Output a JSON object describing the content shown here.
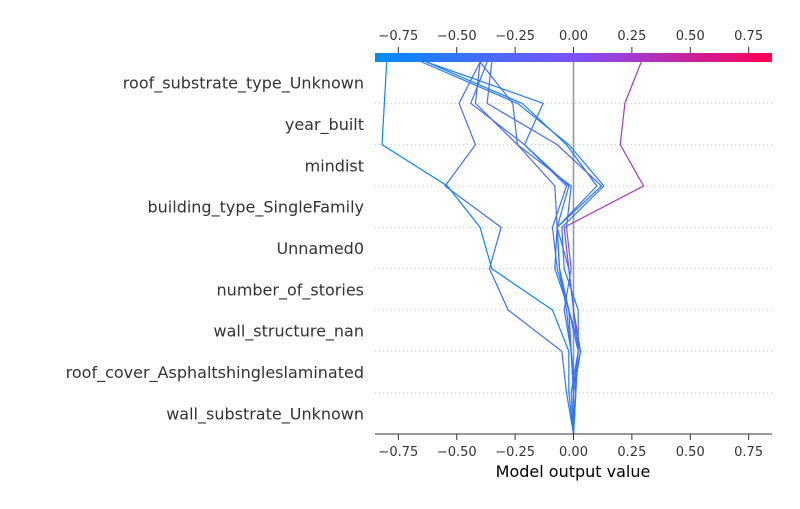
{
  "chart_data": {
    "type": "line",
    "subtype": "shap-decision-plot",
    "xlabel": "Model output value",
    "xlim": [
      -0.85,
      0.85
    ],
    "xticks": [
      -0.75,
      -0.5,
      -0.25,
      0.0,
      0.25,
      0.5,
      0.75
    ],
    "xtick_labels": [
      "−0.75",
      "−0.50",
      "−0.25",
      "0.00",
      "0.25",
      "0.50",
      "0.75"
    ],
    "base_value": 0.0,
    "features": [
      "roof_substrate_type_Unknown",
      "year_built",
      "mindist",
      "building_type_SingleFamily",
      "Unnamed0",
      "number_of_stories",
      "wall_structure_nan",
      "roof_cover_Asphaltshingleslaminated",
      "wall_substrate_Unknown"
    ],
    "colorbar": {
      "from_color": "#008bfb",
      "mid_color": "#7c52ff",
      "to_color": "#ff0052"
    },
    "grid": "dotted horizontal per feature",
    "paths": [
      {
        "values": [
          0.0,
          0.0,
          0.03,
          0.0,
          -0.02,
          -0.04,
          0.3,
          0.2,
          0.22,
          0.29
        ]
      },
      {
        "values": [
          0.0,
          -0.01,
          0.02,
          0.02,
          -0.04,
          -0.05,
          0.13,
          -0.02,
          -0.24,
          -0.65
        ]
      },
      {
        "values": [
          0.0,
          0.0,
          0.03,
          -0.02,
          -0.08,
          -0.07,
          0.1,
          -0.03,
          -0.22,
          -0.63
        ]
      },
      {
        "values": [
          0.0,
          -0.03,
          -0.05,
          -0.28,
          -0.36,
          -0.31,
          -0.55,
          -0.42,
          -0.49,
          -0.4
        ]
      },
      {
        "values": [
          0.0,
          0.01,
          0.02,
          0.0,
          -0.02,
          -0.07,
          0.12,
          -0.07,
          -0.37,
          -0.35
        ]
      },
      {
        "values": [
          0.0,
          0.01,
          -0.01,
          -0.02,
          -0.06,
          -0.07,
          -0.08,
          -0.24,
          -0.26,
          -0.4
        ]
      },
      {
        "values": [
          0.0,
          0.0,
          0.02,
          -0.02,
          -0.07,
          -0.09,
          -0.03,
          -0.21,
          -0.44,
          -0.37
        ]
      },
      {
        "values": [
          0.0,
          -0.02,
          -0.02,
          -0.09,
          -0.35,
          -0.4,
          -0.54,
          -0.82,
          -0.81,
          -0.8
        ]
      },
      {
        "values": [
          0.0,
          0.0,
          -0.01,
          -0.03,
          -0.06,
          -0.07,
          -0.02,
          -0.21,
          -0.13,
          -0.63
        ]
      },
      {
        "values": [
          0.0,
          0.0,
          -0.01,
          -0.04,
          -0.01,
          -0.03,
          -0.01,
          -0.24,
          -0.42,
          -0.4
        ]
      }
    ]
  }
}
